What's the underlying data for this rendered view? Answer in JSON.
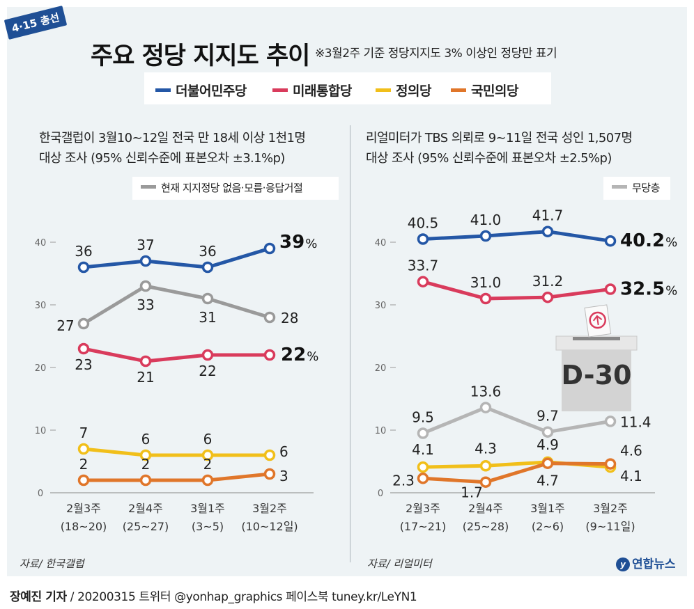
{
  "badge": "4·15 총선",
  "title": "주요 정당 지지도 추이",
  "note": "※3월2주 기준 정당지지도 3% 이상인 정당만 표기",
  "legend": [
    {
      "label": "더불어민주당",
      "color": "#2457a6"
    },
    {
      "label": "미래통합당",
      "color": "#d93b5c"
    },
    {
      "label": "정의당",
      "color": "#f1bf1a"
    },
    {
      "label": "국민의당",
      "color": "#e0762a"
    }
  ],
  "left": {
    "desc_line1": "한국갤럽이 3월10~12일 전국 만 18세 이상 1천1명",
    "desc_line2": "대상 조사 (95% 신뢰수준에 표본오차 ±3.1%p)",
    "sublegend": "현재 지지정당 없음·모름·응답거절",
    "source": "자료/ 한국갤럽"
  },
  "right": {
    "desc_line1": "리얼미터가 TBS 의뢰로 9~11일 전국 성인 1,507명",
    "desc_line2": "대상 조사 (95% 신뢰수준에 표본오차 ±2.5%p)",
    "sublegend": "무당층",
    "source": "자료/ 리얼미터",
    "ballot_text": "D-30"
  },
  "credit": {
    "reporter": "장예진 기자",
    "rest": "/ 20200315 트위터 @yonhap_graphics  페이스북 tuney.kr/LeYN1"
  },
  "logo": "연합뉴스",
  "chart_data": [
    {
      "type": "line",
      "categories": [
        "2월3주",
        "2월4주",
        "3월1주",
        "3월2주"
      ],
      "category_sub": [
        "(18~20)",
        "(25~27)",
        "(3~5)",
        "(10~12일)"
      ],
      "ylim": [
        0,
        40
      ],
      "yticks": [
        0,
        10,
        20,
        30,
        40
      ],
      "series": [
        {
          "name": "더불어민주당",
          "color": "#2457a6",
          "values": [
            36,
            37,
            36,
            39
          ],
          "labels": [
            "36",
            "37",
            "36",
            "39"
          ]
        },
        {
          "name": "현재 지지정당 없음·모름·응답거절",
          "color": "#9a9a9a",
          "values": [
            27,
            33,
            31,
            28
          ],
          "labels": [
            "27",
            "33",
            "31",
            "28"
          ]
        },
        {
          "name": "미래통합당",
          "color": "#d93b5c",
          "values": [
            23,
            21,
            22,
            22
          ],
          "labels": [
            "23",
            "21",
            "22",
            "22"
          ]
        },
        {
          "name": "정의당",
          "color": "#f1bf1a",
          "values": [
            7,
            6,
            6,
            6
          ],
          "labels": [
            "7",
            "6",
            "6",
            "6"
          ]
        },
        {
          "name": "국민의당",
          "color": "#e0762a",
          "values": [
            2,
            2,
            2,
            3
          ],
          "labels": [
            "2",
            "2",
            "2",
            "3"
          ]
        }
      ]
    },
    {
      "type": "line",
      "categories": [
        "2월3주",
        "2월4주",
        "3월1주",
        "3월2주"
      ],
      "category_sub": [
        "(17~21)",
        "(25~28)",
        "(2~6)",
        "(9~11일)"
      ],
      "ylim": [
        0,
        40
      ],
      "yticks": [
        0,
        10,
        20,
        30,
        40
      ],
      "series": [
        {
          "name": "더불어민주당",
          "color": "#2457a6",
          "values": [
            40.5,
            41.0,
            41.7,
            40.2
          ],
          "labels": [
            "40.5",
            "41.0",
            "41.7",
            "40.2"
          ]
        },
        {
          "name": "미래통합당",
          "color": "#d93b5c",
          "values": [
            33.7,
            31.0,
            31.2,
            32.5
          ],
          "labels": [
            "33.7",
            "31.0",
            "31.2",
            "32.5"
          ]
        },
        {
          "name": "무당층",
          "color": "#b5b5b5",
          "values": [
            9.5,
            13.6,
            9.7,
            11.4
          ],
          "labels": [
            "9.5",
            "13.6",
            "9.7",
            "11.4"
          ]
        },
        {
          "name": "정의당",
          "color": "#f1bf1a",
          "values": [
            4.1,
            4.3,
            4.9,
            4.1
          ],
          "labels": [
            "4.1",
            "4.3",
            "4.9",
            "4.1"
          ]
        },
        {
          "name": "국민의당",
          "color": "#e0762a",
          "values": [
            2.3,
            1.7,
            4.7,
            4.6
          ],
          "labels": [
            "2.3",
            "1.7",
            "4.7",
            "4.6"
          ]
        }
      ]
    }
  ]
}
